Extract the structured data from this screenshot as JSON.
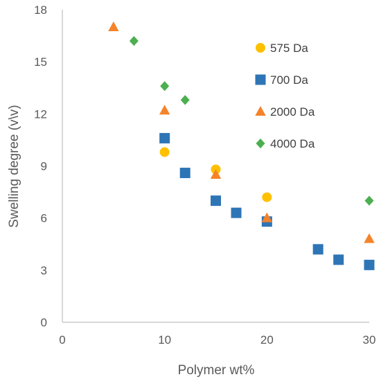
{
  "chart_data": {
    "type": "scatter",
    "title": "",
    "xlabel": "Polymer wt%",
    "ylabel": "Swelling degree (v\\v)",
    "xlim": [
      0,
      30
    ],
    "ylim": [
      0,
      18
    ],
    "xticks": [
      0,
      10,
      20,
      30
    ],
    "yticks": [
      0,
      3,
      6,
      9,
      12,
      15,
      18
    ],
    "grid": false,
    "legend_position": "right",
    "series": [
      {
        "name": "575 Da",
        "color": "#FFC000",
        "marker": "circle",
        "points": [
          {
            "x": 10,
            "y": 9.8
          },
          {
            "x": 15,
            "y": 8.8
          },
          {
            "x": 20,
            "y": 7.2
          }
        ]
      },
      {
        "name": "700 Da",
        "color": "#2E75B6",
        "marker": "square",
        "points": [
          {
            "x": 10,
            "y": 10.6
          },
          {
            "x": 12,
            "y": 8.6
          },
          {
            "x": 15,
            "y": 7.0
          },
          {
            "x": 17,
            "y": 6.3
          },
          {
            "x": 20,
            "y": 5.8
          },
          {
            "x": 25,
            "y": 4.2
          },
          {
            "x": 27,
            "y": 3.6
          },
          {
            "x": 30,
            "y": 3.3
          }
        ]
      },
      {
        "name": "2000 Da",
        "color": "#F5832A",
        "marker": "triangle",
        "points": [
          {
            "x": 5,
            "y": 17.0
          },
          {
            "x": 10,
            "y": 12.2
          },
          {
            "x": 15,
            "y": 8.5
          },
          {
            "x": 20,
            "y": 6.0
          },
          {
            "x": 30,
            "y": 4.8
          }
        ]
      },
      {
        "name": "4000 Da",
        "color": "#4CAF50",
        "marker": "diamond",
        "points": [
          {
            "x": 7,
            "y": 16.2
          },
          {
            "x": 10,
            "y": 13.6
          },
          {
            "x": 12,
            "y": 12.8
          },
          {
            "x": 30,
            "y": 7.0
          }
        ]
      }
    ]
  }
}
